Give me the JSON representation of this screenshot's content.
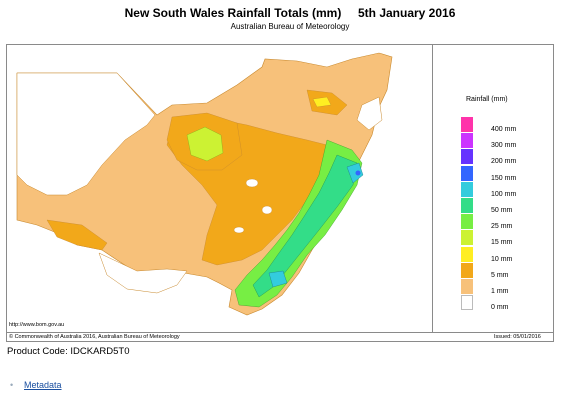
{
  "header": {
    "title": "New South Wales Rainfall Totals (mm)     5th January 2016",
    "subtitle": "Australian Bureau of Meteorology"
  },
  "legend": {
    "title": "Rainfall (mm)",
    "items": [
      {
        "label": "400 mm",
        "color": "#ff33aa"
      },
      {
        "label": "300 mm",
        "color": "#cc33ff"
      },
      {
        "label": "200 mm",
        "color": "#6633ff"
      },
      {
        "label": "150 mm",
        "color": "#3366ff"
      },
      {
        "label": "100 mm",
        "color": "#33ccdd"
      },
      {
        "label": "50 mm",
        "color": "#33dd88"
      },
      {
        "label": "25 mm",
        "color": "#77ee44"
      },
      {
        "label": "15 mm",
        "color": "#ccf233"
      },
      {
        "label": "10 mm",
        "color": "#ffee22"
      },
      {
        "label": "5 mm",
        "color": "#f2a81a"
      },
      {
        "label": "1 mm",
        "color": "#f7c17a"
      },
      {
        "label": "0 mm",
        "color": "#ffffff"
      }
    ]
  },
  "map": {
    "url_text": "http://www.bom.gov.au",
    "copyright": "© Commonwealth of Australia 2016, Australian Bureau of Meteorology",
    "issued": "Issued: 05/01/2016"
  },
  "product_code": "Product Code: IDCKARD5T0",
  "links": {
    "metadata": "Metadata"
  }
}
